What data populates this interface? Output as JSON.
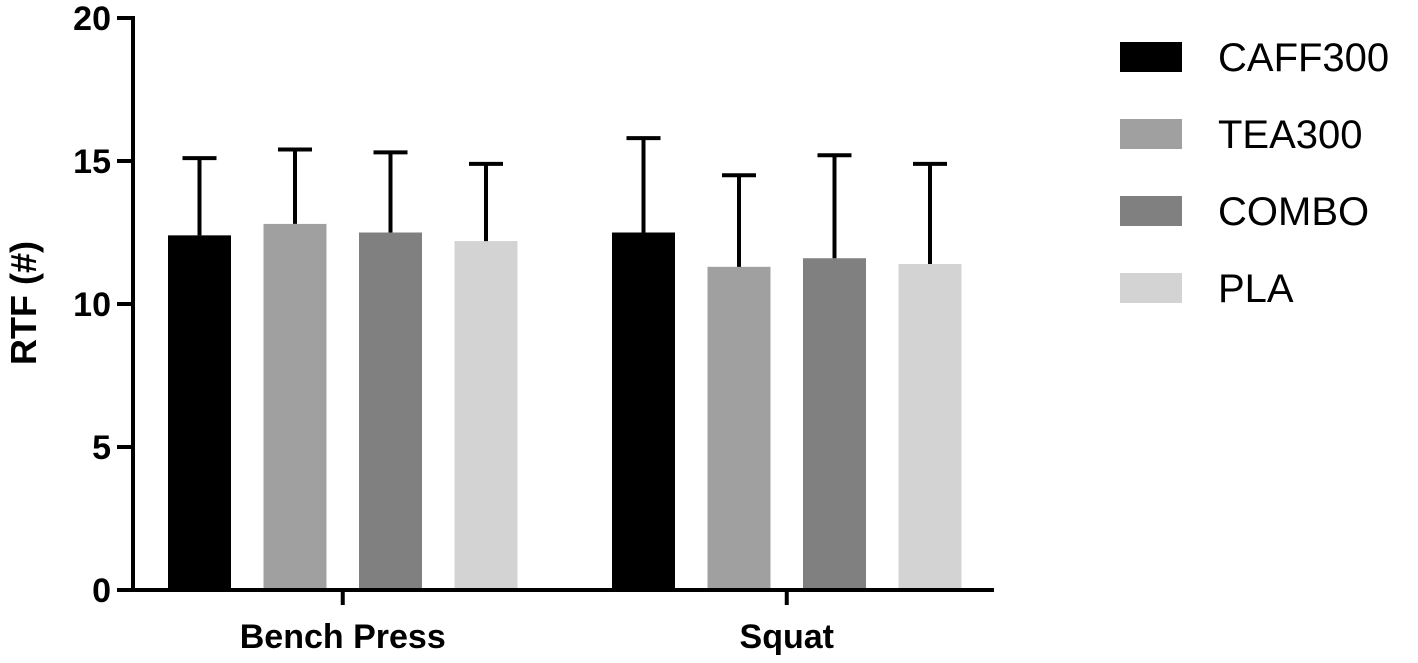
{
  "chart_data": {
    "type": "bar",
    "title": "",
    "xlabel": "",
    "ylabel": "RTF (#)",
    "ylim": [
      0,
      20
    ],
    "yticks": [
      0,
      5,
      10,
      15,
      20
    ],
    "categories": [
      "Bench Press",
      "Squat"
    ],
    "series": [
      {
        "name": "CAFF300",
        "color": "#000000",
        "values": [
          12.4,
          12.5
        ],
        "errors": [
          2.7,
          3.3
        ]
      },
      {
        "name": "TEA300",
        "color": "#a0a0a0",
        "values": [
          12.8,
          11.3
        ],
        "errors": [
          2.6,
          3.2
        ]
      },
      {
        "name": "COMBO",
        "color": "#808080",
        "values": [
          12.5,
          11.6
        ],
        "errors": [
          2.8,
          3.6
        ]
      },
      {
        "name": "PLA",
        "color": "#d3d3d3",
        "values": [
          12.2,
          11.4
        ],
        "errors": [
          2.7,
          3.5
        ]
      }
    ],
    "error_bars": "upper",
    "grid": false,
    "legend_position": "right"
  }
}
